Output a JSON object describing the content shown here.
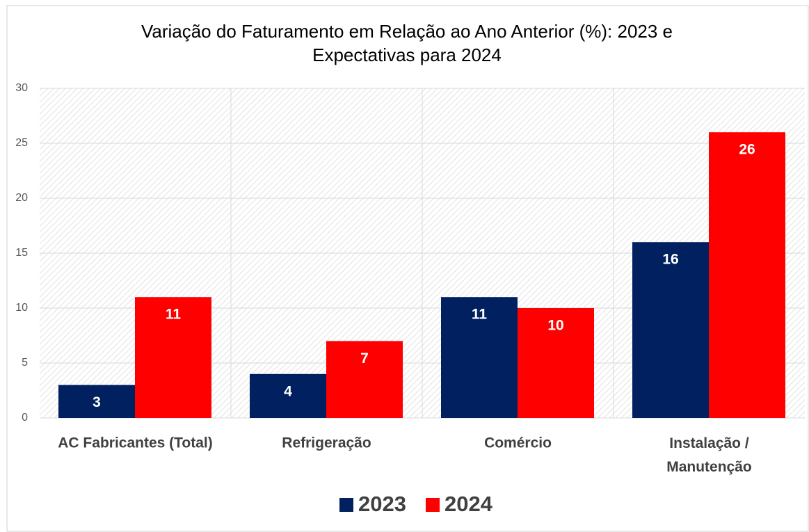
{
  "chart_data": {
    "type": "bar",
    "title": "Variação do Faturamento em Relação ao Ano Anterior (%): 2023 e\nExpectativas para 2024",
    "categories": [
      "AC Fabricantes (Total)",
      "Refrigeração",
      "Comércio",
      "Instalação /\nManutenção"
    ],
    "series": [
      {
        "name": "2023",
        "color": "#002060",
        "values": [
          3,
          4,
          11,
          16
        ]
      },
      {
        "name": "2024",
        "color": "#ff0000",
        "values": [
          11,
          7,
          10,
          26
        ]
      }
    ],
    "ylim": [
      0,
      30
    ],
    "yticks": [
      0,
      5,
      10,
      15,
      20,
      25,
      30
    ],
    "grid": true,
    "legend": "bottom"
  }
}
